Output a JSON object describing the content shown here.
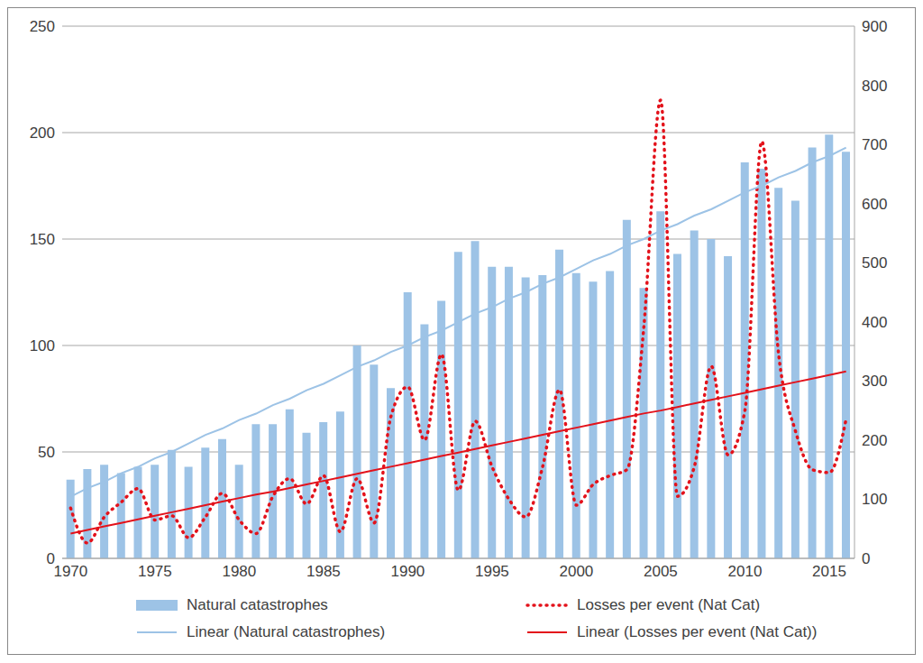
{
  "chart_data": {
    "type": "bar",
    "categories": [
      "1970",
      null,
      null,
      null,
      null,
      "1975",
      null,
      null,
      null,
      null,
      "1980",
      null,
      null,
      null,
      null,
      "1985",
      null,
      null,
      null,
      null,
      "1990",
      null,
      null,
      null,
      null,
      "1995",
      null,
      null,
      null,
      null,
      "2000",
      null,
      null,
      null,
      null,
      "2005",
      null,
      null,
      null,
      null,
      "2010",
      null,
      null,
      null,
      null,
      "2015",
      null
    ],
    "series": [
      {
        "name": "Natural catastrophes",
        "type": "bar",
        "color": "#9dc3e6",
        "values": [
          37,
          42,
          44,
          40,
          43,
          44,
          51,
          43,
          52,
          56,
          44,
          63,
          63,
          70,
          59,
          64,
          69,
          100,
          91,
          80,
          125,
          110,
          121,
          144,
          149,
          137,
          137,
          132,
          133,
          145,
          134,
          130,
          135,
          159,
          127,
          163,
          143,
          154,
          150,
          142,
          186,
          183,
          174,
          168,
          193,
          199,
          191
        ]
      },
      {
        "name": "Losses per event (Nat Cat)",
        "type": "line",
        "color": "#e3121b",
        "line_style": "dotted",
        "axis": "y2",
        "values": [
          85,
          26,
          70,
          95,
          118,
          65,
          72,
          35,
          70,
          110,
          65,
          42,
          105,
          135,
          92,
          140,
          45,
          135,
          60,
          240,
          290,
          200,
          345,
          115,
          232,
          155,
          100,
          70,
          155,
          285,
          90,
          125,
          140,
          150,
          390,
          775,
          105,
          155,
          325,
          175,
          250,
          705,
          345,
          215,
          150,
          145,
          235
        ]
      },
      {
        "name": "Linear (Natural catastrophes)",
        "type": "line",
        "color": "#9dc3e6",
        "line_style": "solid",
        "values": [
          29,
          33,
          36,
          40,
          43,
          47,
          50,
          54,
          58,
          61,
          65,
          68,
          72,
          75,
          79,
          82,
          86,
          90,
          93,
          97,
          100,
          104,
          107,
          111,
          115,
          118,
          122,
          125,
          129,
          132,
          136,
          140,
          143,
          147,
          150,
          154,
          157,
          161,
          164,
          168,
          172,
          175,
          179,
          182,
          186,
          189,
          193
        ]
      },
      {
        "name": "Linear (Losses per event (Nat Cat))",
        "type": "line",
        "color": "#e3121b",
        "line_style": "solid",
        "axis": "y2",
        "values": [
          42,
          48,
          54,
          60,
          66,
          72,
          78,
          84,
          90,
          96,
          102,
          108,
          113,
          119,
          125,
          131,
          137,
          143,
          149,
          155,
          161,
          167,
          173,
          179,
          185,
          191,
          197,
          203,
          209,
          215,
          221,
          227,
          233,
          239,
          245,
          250,
          256,
          262,
          268,
          274,
          280,
          286,
          292,
          298,
          304,
          310,
          316
        ]
      }
    ],
    "ylim": [
      0,
      250
    ],
    "yticks": [
      0,
      50,
      100,
      150,
      200,
      250
    ],
    "y2lim": [
      0,
      900
    ],
    "y2ticks": [
      0,
      100,
      200,
      300,
      400,
      500,
      600,
      700,
      800,
      900
    ],
    "grid": true,
    "legend": "bottom"
  }
}
